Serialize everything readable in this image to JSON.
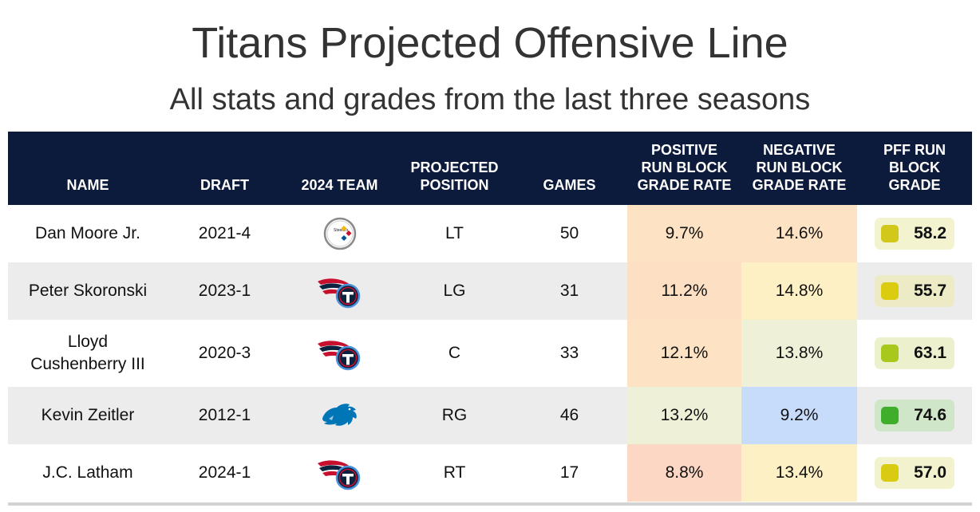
{
  "title": "Titans Projected Offensive Line",
  "subtitle": "All stats and grades from the last three seasons",
  "columns": {
    "name": "NAME",
    "draft": "DRAFT",
    "team": "2024 TEAM",
    "position_1": "PROJECTED",
    "position_2": "POSITION",
    "games": "GAMES",
    "pos_rate_1": "POSITIVE",
    "pos_rate_2": "RUN BLOCK",
    "pos_rate_3": "GRADE RATE",
    "neg_rate_1": "NEGATIVE",
    "neg_rate_2": "RUN BLOCK",
    "neg_rate_3": "GRADE RATE",
    "grade_1": "PFF RUN",
    "grade_2": "BLOCK",
    "grade_3": "GRADE"
  },
  "rows": [
    {
      "name_1": "Dan Moore Jr.",
      "name_2": "",
      "draft": "2021-4",
      "team_icon": "steelers-logo-icon",
      "position": "LT",
      "games": "50",
      "pos_rate": "9.7%",
      "neg_rate": "14.6%",
      "grade": "58.2"
    },
    {
      "name_1": "Peter Skoronski",
      "name_2": "",
      "draft": "2023-1",
      "team_icon": "titans-logo-icon",
      "position": "LG",
      "games": "31",
      "pos_rate": "11.2%",
      "neg_rate": "14.8%",
      "grade": "55.7"
    },
    {
      "name_1": "Lloyd",
      "name_2": "Cushenberry III",
      "draft": "2020-3",
      "team_icon": "titans-logo-icon",
      "position": "C",
      "games": "33",
      "pos_rate": "12.1%",
      "neg_rate": "13.8%",
      "grade": "63.1"
    },
    {
      "name_1": "Kevin Zeitler",
      "name_2": "",
      "draft": "2012-1",
      "team_icon": "lions-logo-icon",
      "position": "RG",
      "games": "46",
      "pos_rate": "13.2%",
      "neg_rate": "9.2%",
      "grade": "74.6"
    },
    {
      "name_1": "J.C. Latham",
      "name_2": "",
      "draft": "2024-1",
      "team_icon": "titans-logo-icon",
      "position": "RT",
      "games": "17",
      "pos_rate": "8.8%",
      "neg_rate": "13.4%",
      "grade": "57.0"
    }
  ],
  "colors": {
    "header_bg": "#0c1a3c",
    "pos_rate_cells": [
      "#fde3c4",
      "#fddfc4",
      "#fde3c4",
      "#eef0d8",
      "#fcd7c4"
    ],
    "neg_rate_cells": [
      "#fde3c4",
      "#fdf0c4",
      "#eef0d8",
      "#c7dbfb",
      "#fdf0c4"
    ],
    "grade_pill_bg": [
      "#f3f3d0",
      "#ecebc6",
      "#ecf0cd",
      "#cfe6c8",
      "#f3f2cf"
    ],
    "grade_dot": [
      "#d2c81a",
      "#dccc10",
      "#a9c81e",
      "#3fae2a",
      "#d8cb12"
    ]
  },
  "chart_data": {
    "type": "table",
    "title": "Titans Projected Offensive Line",
    "subtitle": "All stats and grades from the last three seasons",
    "columns": [
      "NAME",
      "DRAFT",
      "2024 TEAM",
      "PROJECTED POSITION",
      "GAMES",
      "POSITIVE RUN BLOCK GRADE RATE",
      "NEGATIVE RUN BLOCK GRADE RATE",
      "PFF RUN BLOCK GRADE"
    ],
    "rows": [
      [
        "Dan Moore Jr.",
        "2021-4",
        "Steelers",
        "LT",
        50,
        9.7,
        14.6,
        58.2
      ],
      [
        "Peter Skoronski",
        "2023-1",
        "Titans",
        "LG",
        31,
        11.2,
        14.8,
        55.7
      ],
      [
        "Lloyd Cushenberry III",
        "2020-3",
        "Titans",
        "C",
        33,
        12.1,
        13.8,
        63.1
      ],
      [
        "Kevin Zeitler",
        "2012-1",
        "Lions",
        "RG",
        46,
        13.2,
        9.2,
        74.6
      ],
      [
        "J.C. Latham",
        "2024-1",
        "Titans",
        "RT",
        17,
        8.8,
        13.4,
        57.0
      ]
    ]
  }
}
